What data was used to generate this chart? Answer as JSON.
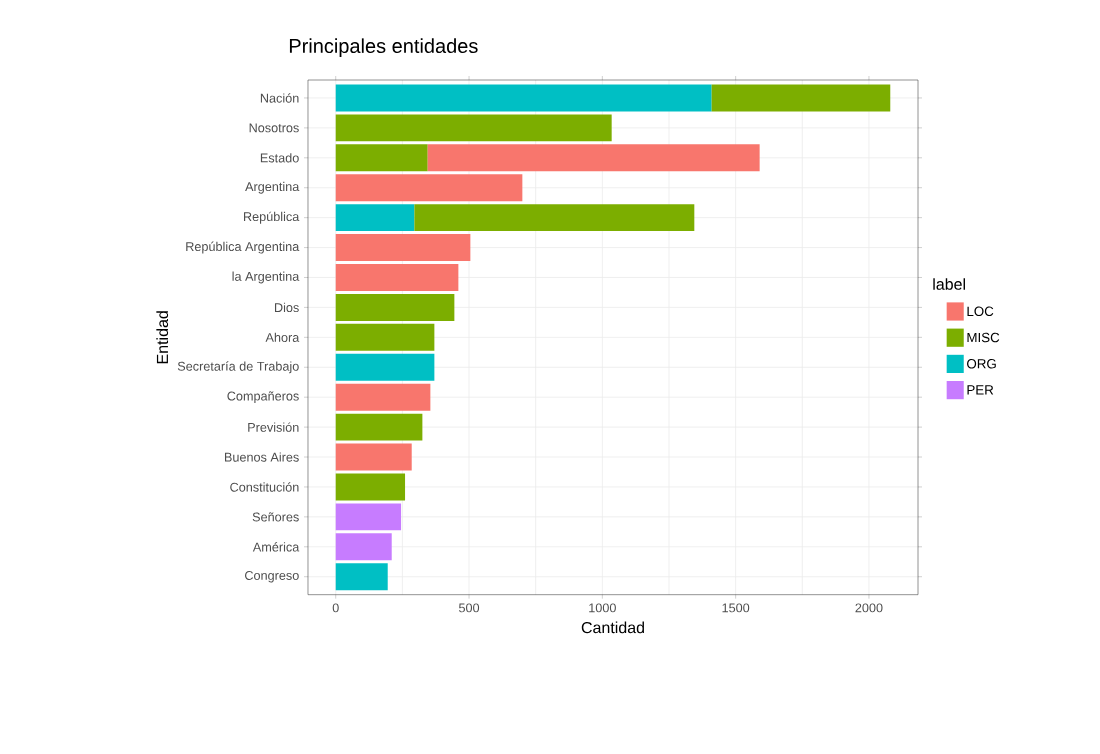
{
  "chart_data": {
    "type": "bar",
    "orientation": "horizontal",
    "stacked": true,
    "title": "Principales entidades",
    "xlabel": "Cantidad",
    "ylabel": "Entidad",
    "legend_title": "label",
    "legend": "right",
    "grid": true,
    "categories": [
      "Nación",
      "Nosotros",
      "Estado",
      "Argentina",
      "República",
      "República Argentina",
      "la Argentina",
      "Dios",
      "Ahora",
      "Secretaría de Trabajo",
      "Compañeros",
      "Previsión",
      "Buenos Aires",
      "Constitución",
      "Señores",
      "América",
      "Congreso"
    ],
    "xlim": [
      -104,
      2184
    ],
    "xticks": [
      0,
      500,
      1000,
      1500,
      2000
    ],
    "series": [
      {
        "name": "PER",
        "color": "#c77cff",
        "values": [
          null,
          null,
          null,
          null,
          null,
          null,
          null,
          null,
          null,
          null,
          null,
          null,
          null,
          null,
          245,
          210,
          null
        ]
      },
      {
        "name": "ORG",
        "color": "#00bfc4",
        "values": [
          1410,
          null,
          null,
          null,
          295,
          null,
          null,
          null,
          null,
          370,
          null,
          null,
          null,
          null,
          null,
          null,
          195
        ]
      },
      {
        "name": "MISC",
        "color": "#7cae00",
        "values": [
          670,
          1035,
          345,
          null,
          1050,
          null,
          null,
          445,
          370,
          null,
          null,
          325,
          null,
          260,
          null,
          null,
          null
        ]
      },
      {
        "name": "LOC",
        "color": "#f8766d",
        "values": [
          null,
          null,
          1245,
          700,
          null,
          505,
          460,
          null,
          null,
          null,
          355,
          null,
          285,
          null,
          null,
          null,
          null
        ]
      }
    ]
  }
}
